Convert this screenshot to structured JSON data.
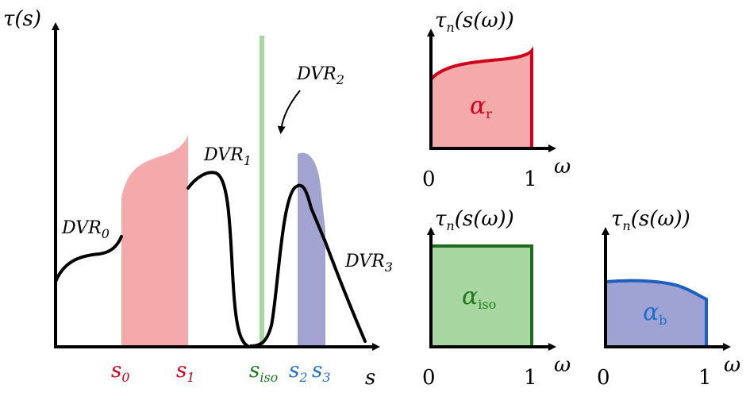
{
  "left_plot": {
    "y_axis_label": "τ(s)",
    "x_axis_label": "s",
    "curve_labels": [
      {
        "base": "DVR",
        "sub": "0"
      },
      {
        "base": "DVR",
        "sub": "1"
      },
      {
        "base": "DVR",
        "sub": "2"
      },
      {
        "base": "DVR",
        "sub": "3"
      }
    ],
    "s_ticks": [
      {
        "base": "s",
        "sub": "0",
        "color": "#d0001c"
      },
      {
        "base": "s",
        "sub": "1",
        "color": "#d0001c"
      },
      {
        "base": "s",
        "sub": "iso",
        "color": "#1e7a1e"
      },
      {
        "base": "s",
        "sub": "2",
        "color": "#1f6fc8"
      },
      {
        "base": "s",
        "sub": "3",
        "color": "#1f6fc8"
      }
    ]
  },
  "small_plots": [
    {
      "y_label": "τ",
      "y_label_sub": "n",
      "y_label_rest": "(s(ω))",
      "x_label": "ω",
      "tick_0": "0",
      "tick_1": "1",
      "alpha_sub": "r",
      "color": "#d0001c",
      "fill": "#f4a9aa"
    },
    {
      "y_label": "τ",
      "y_label_sub": "n",
      "y_label_rest": "(s(ω))",
      "x_label": "ω",
      "tick_0": "0",
      "tick_1": "1",
      "alpha_sub": "iso",
      "color": "#1e6a1e",
      "fill": "#a8d6a0"
    },
    {
      "y_label": "τ",
      "y_label_sub": "n",
      "y_label_rest": "(s(ω))",
      "x_label": "ω",
      "tick_0": "0",
      "tick_1": "1",
      "alpha_sub": "b",
      "color": "#1f5fc0",
      "fill": "#9fa3d4"
    }
  ],
  "alpha_symbol": "α"
}
